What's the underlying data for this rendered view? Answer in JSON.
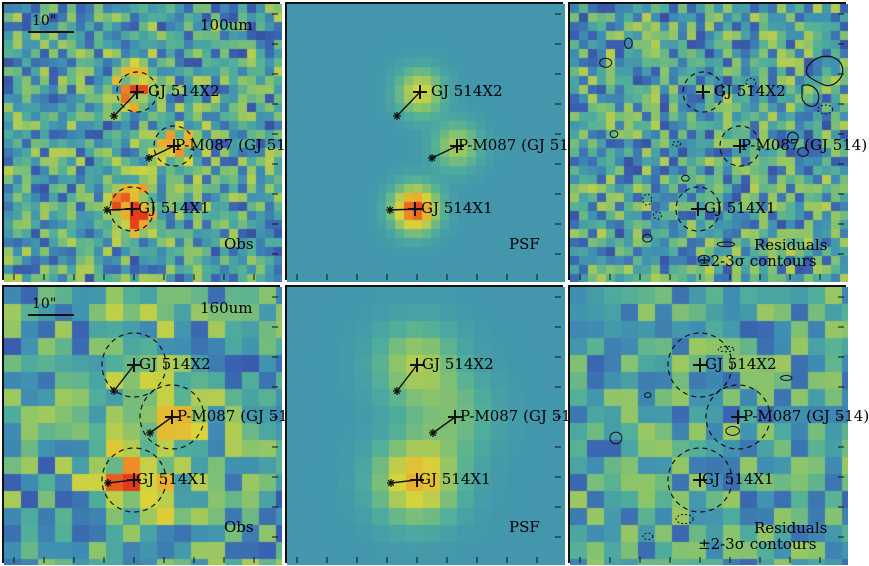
{
  "figure": {
    "rows": [
      {
        "band": "100um",
        "scale_label": "10\"",
        "panels": [
          {
            "kind": "obs",
            "label": "Obs",
            "show_band": true
          },
          {
            "kind": "psf",
            "label": "PSF",
            "show_band": false
          },
          {
            "kind": "res",
            "label": "Residuals",
            "label2": "±2-3σ contours",
            "show_band": false
          }
        ]
      },
      {
        "band": "160um",
        "scale_label": "10\"",
        "panels": [
          {
            "kind": "obs",
            "label": "Obs",
            "show_band": true
          },
          {
            "kind": "psf",
            "label": "PSF",
            "show_band": false
          },
          {
            "kind": "res",
            "label": "Residuals",
            "label2": "±2-3σ contours",
            "show_band": false
          }
        ]
      }
    ],
    "sources": [
      {
        "name": "GJ 514X2"
      },
      {
        "name": "P-M087 (GJ 514)"
      },
      {
        "name": "GJ 514X1"
      }
    ],
    "colormap": [
      "#3b2a7a",
      "#3a5fb0",
      "#3f8fb2",
      "#4fae9b",
      "#8cc46a",
      "#d8d43a",
      "#f0a22c",
      "#e23a1a"
    ]
  }
}
